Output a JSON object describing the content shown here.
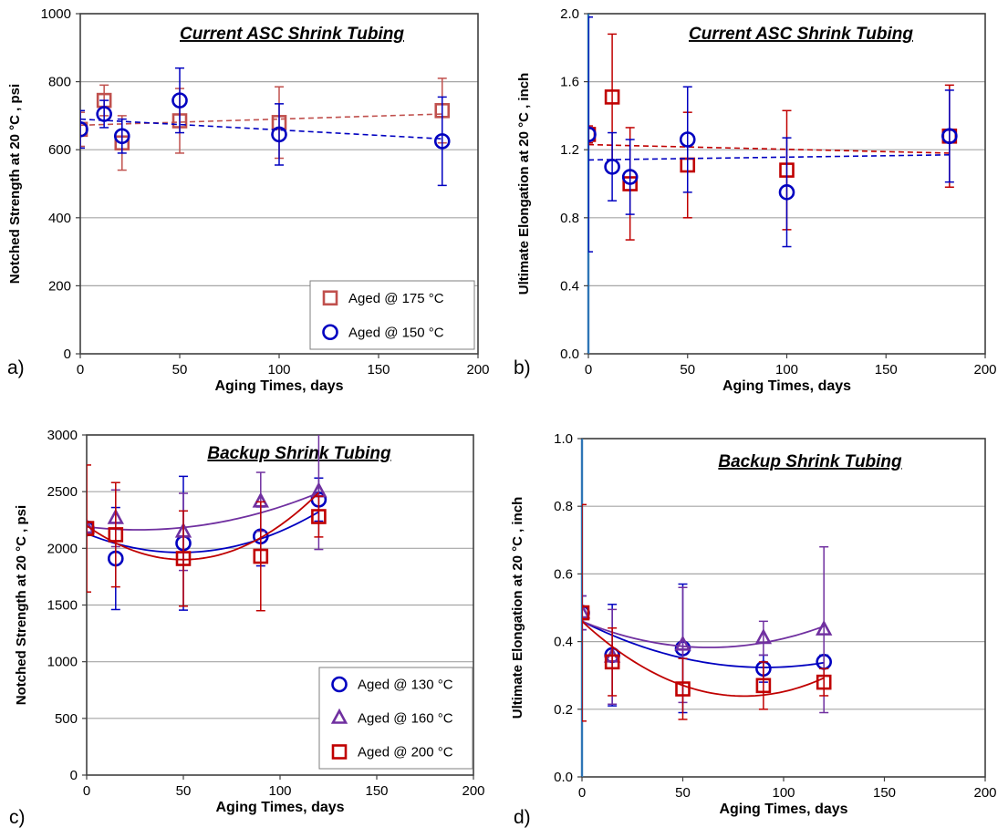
{
  "colors": {
    "red": "#C00000",
    "red_light": "#C0504D",
    "blue": "#0000C0",
    "purple": "#7030A0",
    "grid": "#A6A6A6",
    "frame": "#404040",
    "yaxis_blue": "#2E75B6"
  },
  "chart_data": [
    {
      "panel_label": "a)",
      "type": "scatter",
      "title": "Current ASC Shrink Tubing",
      "xlabel": "Aging Times, days",
      "ylabel": "Notched Strength at 20 °C , psi",
      "xlim": [
        0,
        200
      ],
      "ylim": [
        0,
        1000
      ],
      "xticks": [
        0,
        50,
        100,
        150,
        200
      ],
      "yticks": [
        0,
        200,
        400,
        600,
        800,
        1000
      ],
      "ytick_labels": [
        "0",
        "200",
        "400",
        "600",
        "800",
        "1000"
      ],
      "grid": true,
      "legend_position": "bottom-right",
      "series": [
        {
          "name": "Aged @ 175 °C",
          "marker": "square",
          "color_key": "red_light",
          "x": [
            0,
            12,
            21,
            50,
            100,
            182
          ],
          "y": [
            660,
            745,
            620,
            685,
            680,
            715
          ],
          "err": [
            50,
            45,
            80,
            95,
            105,
            95
          ],
          "trend": {
            "kind": "linear",
            "x": [
              0,
              182
            ],
            "y": [
              672,
              705
            ]
          }
        },
        {
          "name": "Aged @ 150 °C",
          "marker": "circle",
          "color_key": "blue",
          "x": [
            0,
            12,
            21,
            50,
            100,
            182
          ],
          "y": [
            660,
            705,
            640,
            745,
            645,
            625
          ],
          "err": [
            55,
            40,
            50,
            95,
            90,
            130
          ],
          "trend": {
            "kind": "linear",
            "x": [
              0,
              182
            ],
            "y": [
              690,
              632
            ]
          }
        }
      ]
    },
    {
      "panel_label": "b)",
      "type": "scatter",
      "title": "Current ASC Shrink Tubing",
      "xlabel": "Aging Times, days",
      "ylabel": "Ultimate Elongation  at 20 °C , inch",
      "xlim": [
        0,
        200
      ],
      "ylim": [
        0,
        2
      ],
      "xticks": [
        0,
        50,
        100,
        150,
        200
      ],
      "yticks": [
        0,
        0.4,
        0.8,
        1.2,
        1.6,
        2.0
      ],
      "ytick_labels": [
        "0.0",
        "0.4",
        "0.8",
        "1.2",
        "1.6",
        "2.0"
      ],
      "grid": true,
      "series": [
        {
          "name": "Aged @ 175 °C",
          "marker": "square",
          "color_key": "red",
          "x": [
            0,
            12,
            21,
            50,
            100,
            182
          ],
          "y": [
            1.29,
            1.51,
            1.0,
            1.11,
            1.08,
            1.28
          ],
          "err": [
            0.05,
            0.37,
            0.33,
            0.31,
            0.35,
            0.3
          ],
          "trend": {
            "kind": "linear",
            "x": [
              0,
              182
            ],
            "y": [
              1.23,
              1.18
            ]
          }
        },
        {
          "name": "Aged @ 150 °C",
          "marker": "circle",
          "color_key": "blue",
          "x": [
            0,
            12,
            21,
            50,
            100,
            182
          ],
          "y": [
            1.29,
            1.1,
            1.04,
            1.26,
            0.95,
            1.28
          ],
          "err": [
            0.69,
            0.2,
            0.22,
            0.31,
            0.32,
            0.27
          ],
          "trend": {
            "kind": "linear",
            "x": [
              0,
              182
            ],
            "y": [
              1.14,
              1.17
            ]
          }
        }
      ]
    },
    {
      "panel_label": "c)",
      "type": "scatter",
      "title": "Backup Shrink Tubing",
      "xlabel": "Aging Times, days",
      "ylabel": "Notched Strength at 20 °C , psi",
      "xlim": [
        0,
        200
      ],
      "ylim": [
        0,
        3000
      ],
      "xticks": [
        0,
        50,
        100,
        150,
        200
      ],
      "yticks": [
        0,
        500,
        1000,
        1500,
        2000,
        2500,
        3000
      ],
      "ytick_labels": [
        "0",
        "500",
        "1000",
        "1500",
        "2000",
        "2500",
        "3000"
      ],
      "grid": true,
      "legend_position": "bottom-right",
      "series": [
        {
          "name": "Aged @ 130 °C",
          "marker": "circle",
          "color_key": "blue",
          "x": [
            0,
            15,
            50,
            90,
            120
          ],
          "y": [
            2175,
            1910,
            2045,
            2105,
            2430
          ],
          "err": [
            60,
            450,
            590,
            260,
            190
          ],
          "trend": {
            "kind": "quadratic",
            "coef": [
              2130,
              -6.85,
              0.0704
            ]
          }
        },
        {
          "name": "Aged @ 160 °C",
          "marker": "triangle",
          "color_key": "purple",
          "x": [
            0,
            15,
            50,
            90,
            120
          ],
          "y": [
            2180,
            2265,
            2145,
            2410,
            2500
          ],
          "err": [
            50,
            250,
            340,
            260,
            510
          ],
          "trend": {
            "kind": "quadratic",
            "coef": [
              2190,
              -2.0,
              0.0375
            ]
          }
        },
        {
          "name": "Aged @ 200 °C",
          "marker": "square",
          "color_key": "red",
          "x": [
            0,
            15,
            50,
            90,
            120
          ],
          "y": [
            2175,
            2120,
            1910,
            1930,
            2280
          ],
          "err": [
            560,
            460,
            420,
            480,
            180
          ],
          "trend": {
            "kind": "quadratic",
            "coef": [
              2200,
              -12.0,
              0.1202
            ]
          }
        }
      ]
    },
    {
      "panel_label": "d)",
      "type": "scatter",
      "title": "Backup Shrink Tubing",
      "xlabel": "Aging Times, days",
      "ylabel": "Ultimate Elongation  at 20 °C , inch",
      "xlim": [
        0,
        200
      ],
      "ylim": [
        0,
        1
      ],
      "xticks": [
        0,
        50,
        100,
        150,
        200
      ],
      "yticks": [
        0,
        0.2,
        0.4,
        0.6,
        0.8,
        1.0
      ],
      "ytick_labels": [
        "0.0",
        "0.2",
        "0.4",
        "0.6",
        "0.8",
        "1.0"
      ],
      "grid": true,
      "series": [
        {
          "name": "Aged @ 130 °C",
          "marker": "circle",
          "color_key": "blue",
          "x": [
            0,
            15,
            50,
            90,
            120
          ],
          "y": [
            0.485,
            0.36,
            0.38,
            0.32,
            0.34
          ],
          "err": [
            0.05,
            0.15,
            0.19,
            0.04,
            0.02
          ],
          "trend": {
            "kind": "quadratic",
            "coef": [
              0.46,
              -0.003,
              1.65e-05
            ]
          }
        },
        {
          "name": "Aged @ 160 °C",
          "marker": "triangle",
          "color_key": "purple",
          "x": [
            0,
            15,
            50,
            90,
            120
          ],
          "y": [
            0.485,
            0.355,
            0.39,
            0.41,
            0.435
          ],
          "err": [
            0.05,
            0.14,
            0.17,
            0.05,
            0.245
          ],
          "trend": {
            "kind": "quadratic",
            "coef": [
              0.46,
              -0.00245,
              1.94e-05
            ]
          }
        },
        {
          "name": "Aged @ 200 °C",
          "marker": "square",
          "color_key": "red",
          "x": [
            0,
            15,
            50,
            90,
            120
          ],
          "y": [
            0.485,
            0.34,
            0.26,
            0.27,
            0.28
          ],
          "err": [
            0.32,
            0.1,
            0.09,
            0.07,
            0.04
          ],
          "trend": {
            "kind": "quadratic",
            "coef": [
              0.46,
              -0.0055,
              3.42e-05
            ]
          }
        }
      ]
    }
  ]
}
